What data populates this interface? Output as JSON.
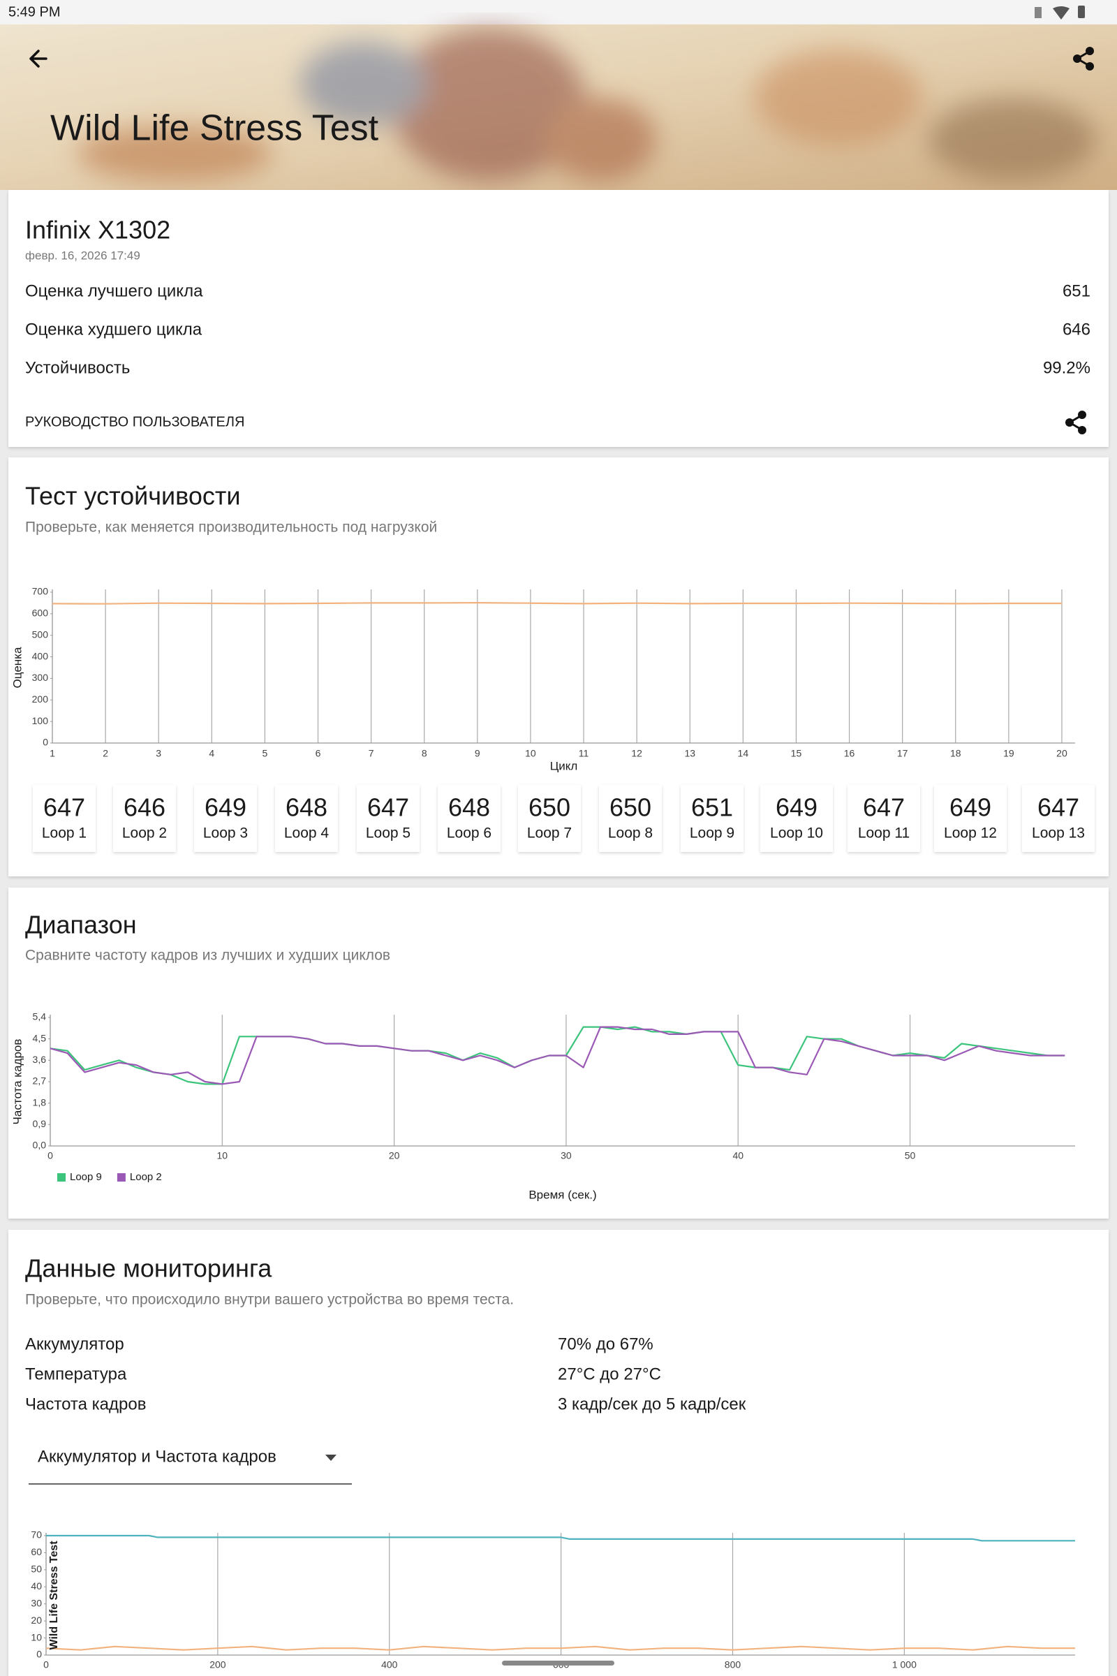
{
  "status_bar": {
    "time": "5:49 PM"
  },
  "header": {
    "title": "Wild Life Stress Test"
  },
  "summary": {
    "device": "Infinix X1302",
    "date": "февр. 16, 2026 17:49",
    "rows": [
      {
        "label": "Оценка лучшего цикла",
        "value": "651"
      },
      {
        "label": "Оценка худшего цикла",
        "value": "646"
      },
      {
        "label": "Устойчивость",
        "value": "99.2%"
      }
    ],
    "guide": "РУКОВОДСТВО ПОЛЬЗОВАТЕЛЯ"
  },
  "stability": {
    "title": "Тест устойчивости",
    "subtitle": "Проверьте, как меняется производительность под нагрузкой",
    "loop_labels": [
      "Loop 1",
      "Loop 2",
      "Loop 3",
      "Loop 4",
      "Loop 5",
      "Loop 6",
      "Loop 7",
      "Loop 8",
      "Loop 9",
      "Loop 10",
      "Loop 11",
      "Loop 12",
      "Loop 13"
    ],
    "chart_data": {
      "type": "line",
      "x_label": "Цикл",
      "y_label": "Оценка",
      "x": [
        1,
        2,
        3,
        4,
        5,
        6,
        7,
        8,
        9,
        10,
        11,
        12,
        13,
        14,
        15,
        16,
        17,
        18,
        19,
        20
      ],
      "xlim": [
        1,
        20.25
      ],
      "xticks": [
        1,
        2,
        3,
        4,
        5,
        6,
        7,
        8,
        9,
        10,
        11,
        12,
        13,
        14,
        15,
        16,
        17,
        18,
        19,
        20
      ],
      "ylim": [
        0,
        700
      ],
      "yticks": [
        0,
        100,
        200,
        300,
        400,
        500,
        600,
        700
      ],
      "grid": "x",
      "series": [
        {
          "color": "#f2b27e",
          "values": [
            647,
            646,
            649,
            648,
            647,
            648,
            650,
            650,
            651,
            649,
            647,
            649,
            647,
            648,
            648,
            649,
            648,
            647,
            648,
            648
          ]
        }
      ]
    }
  },
  "range": {
    "title": "Диапазон",
    "subtitle": "Сравните частоту кадров из лучших и худших циклов",
    "chart_data": {
      "type": "line",
      "x_label": "Время (сек.)",
      "y_label": "Частота кадров",
      "x": [
        0,
        1,
        2,
        3,
        4,
        5,
        6,
        7,
        8,
        9,
        10,
        11,
        12,
        13,
        14,
        15,
        16,
        17,
        18,
        19,
        20,
        21,
        22,
        23,
        24,
        25,
        26,
        27,
        28,
        29,
        30,
        31,
        32,
        33,
        34,
        35,
        36,
        37,
        38,
        39,
        40,
        41,
        42,
        43,
        44,
        45,
        46,
        47,
        48,
        49,
        50,
        51,
        52,
        53,
        54,
        55,
        56,
        57,
        58,
        59
      ],
      "xlim": [
        0,
        59.6
      ],
      "xticks": [
        0,
        10,
        20,
        30,
        40,
        50
      ],
      "ylim": [
        0,
        5.4
      ],
      "yticks": [
        {
          "value": 0,
          "label": "0,0"
        },
        {
          "value": 0.9,
          "label": "0,9"
        },
        {
          "value": 1.8,
          "label": "1,8"
        },
        {
          "value": 2.7,
          "label": "2,7"
        },
        {
          "value": 3.6,
          "label": "3,6"
        },
        {
          "value": 4.5,
          "label": "4,5"
        },
        {
          "value": 5.4,
          "label": "5,4"
        }
      ],
      "grid": "x",
      "legend": "bottom-left",
      "series": [
        {
          "name": "Loop 9",
          "color": "#3cc47c",
          "values": [
            4.1,
            4.0,
            3.2,
            3.4,
            3.6,
            3.3,
            3.1,
            3.0,
            2.7,
            2.6,
            2.6,
            4.6,
            4.6,
            4.6,
            4.6,
            4.5,
            4.3,
            4.3,
            4.2,
            4.2,
            4.1,
            4.0,
            4.0,
            3.9,
            3.6,
            3.9,
            3.7,
            3.3,
            3.6,
            3.8,
            3.8,
            5.0,
            5.0,
            4.9,
            5.0,
            4.8,
            4.8,
            4.7,
            4.8,
            4.8,
            3.4,
            3.3,
            3.3,
            3.2,
            4.6,
            4.5,
            4.5,
            4.2,
            4.0,
            3.8,
            3.9,
            3.8,
            3.7,
            4.3,
            4.2,
            4.1,
            4.0,
            3.9,
            3.8,
            3.8
          ]
        },
        {
          "name": "Loop 2",
          "color": "#9b59b6",
          "values": [
            4.1,
            3.9,
            3.1,
            3.3,
            3.5,
            3.4,
            3.1,
            3.0,
            3.1,
            2.7,
            2.6,
            2.7,
            4.6,
            4.6,
            4.6,
            4.5,
            4.3,
            4.3,
            4.2,
            4.2,
            4.1,
            4.0,
            4.0,
            3.8,
            3.6,
            3.8,
            3.6,
            3.3,
            3.6,
            3.8,
            3.8,
            3.3,
            5.0,
            5.0,
            4.9,
            4.9,
            4.7,
            4.7,
            4.8,
            4.8,
            4.8,
            3.3,
            3.3,
            3.1,
            3.0,
            4.5,
            4.4,
            4.2,
            4.0,
            3.8,
            3.8,
            3.8,
            3.6,
            3.9,
            4.2,
            4.0,
            3.9,
            3.8,
            3.8,
            3.8
          ]
        }
      ]
    }
  },
  "monitoring": {
    "title": "Данные мониторинга",
    "subtitle": "Проверьте, что происходило внутри вашего устройства во время теста.",
    "rows": [
      {
        "label": "Аккумулятор",
        "value": "70% до 67%"
      },
      {
        "label": "Температура",
        "value": "27°C до 27°C"
      },
      {
        "label": "Частота кадров",
        "value": "3 кадр/сек до 5 кадр/сек"
      }
    ],
    "dropdown": "Аккумулятор и Частота кадров",
    "chart_data": {
      "type": "line",
      "y_label": "Wild Life Stress Test",
      "xlim": [
        0,
        1199
      ],
      "xticks": [
        0,
        200,
        400,
        600,
        800,
        {
          "value": 1000,
          "label": "1 000"
        }
      ],
      "ylim": [
        0,
        70
      ],
      "yticks": [
        0,
        10,
        20,
        30,
        40,
        50,
        60,
        70
      ],
      "grid": "x",
      "series": [
        {
          "color": "#4fb3bf",
          "x": [
            0,
            120,
            130,
            600,
            610,
            1080,
            1090,
            1199
          ],
          "values": [
            70,
            70,
            69,
            69,
            68,
            68,
            67,
            67
          ]
        },
        {
          "color": "#f2b27e",
          "x": [
            0,
            40,
            80,
            120,
            160,
            200,
            240,
            280,
            320,
            360,
            400,
            440,
            480,
            520,
            560,
            600,
            640,
            680,
            720,
            760,
            800,
            840,
            880,
            920,
            960,
            1000,
            1040,
            1080,
            1120,
            1160,
            1199
          ],
          "values": [
            4,
            3,
            5,
            4,
            3,
            4,
            5,
            3,
            4,
            4,
            3,
            5,
            4,
            3,
            4,
            4,
            5,
            3,
            4,
            4,
            3,
            4,
            5,
            4,
            3,
            4,
            4,
            3,
            5,
            4,
            4
          ]
        }
      ]
    }
  }
}
